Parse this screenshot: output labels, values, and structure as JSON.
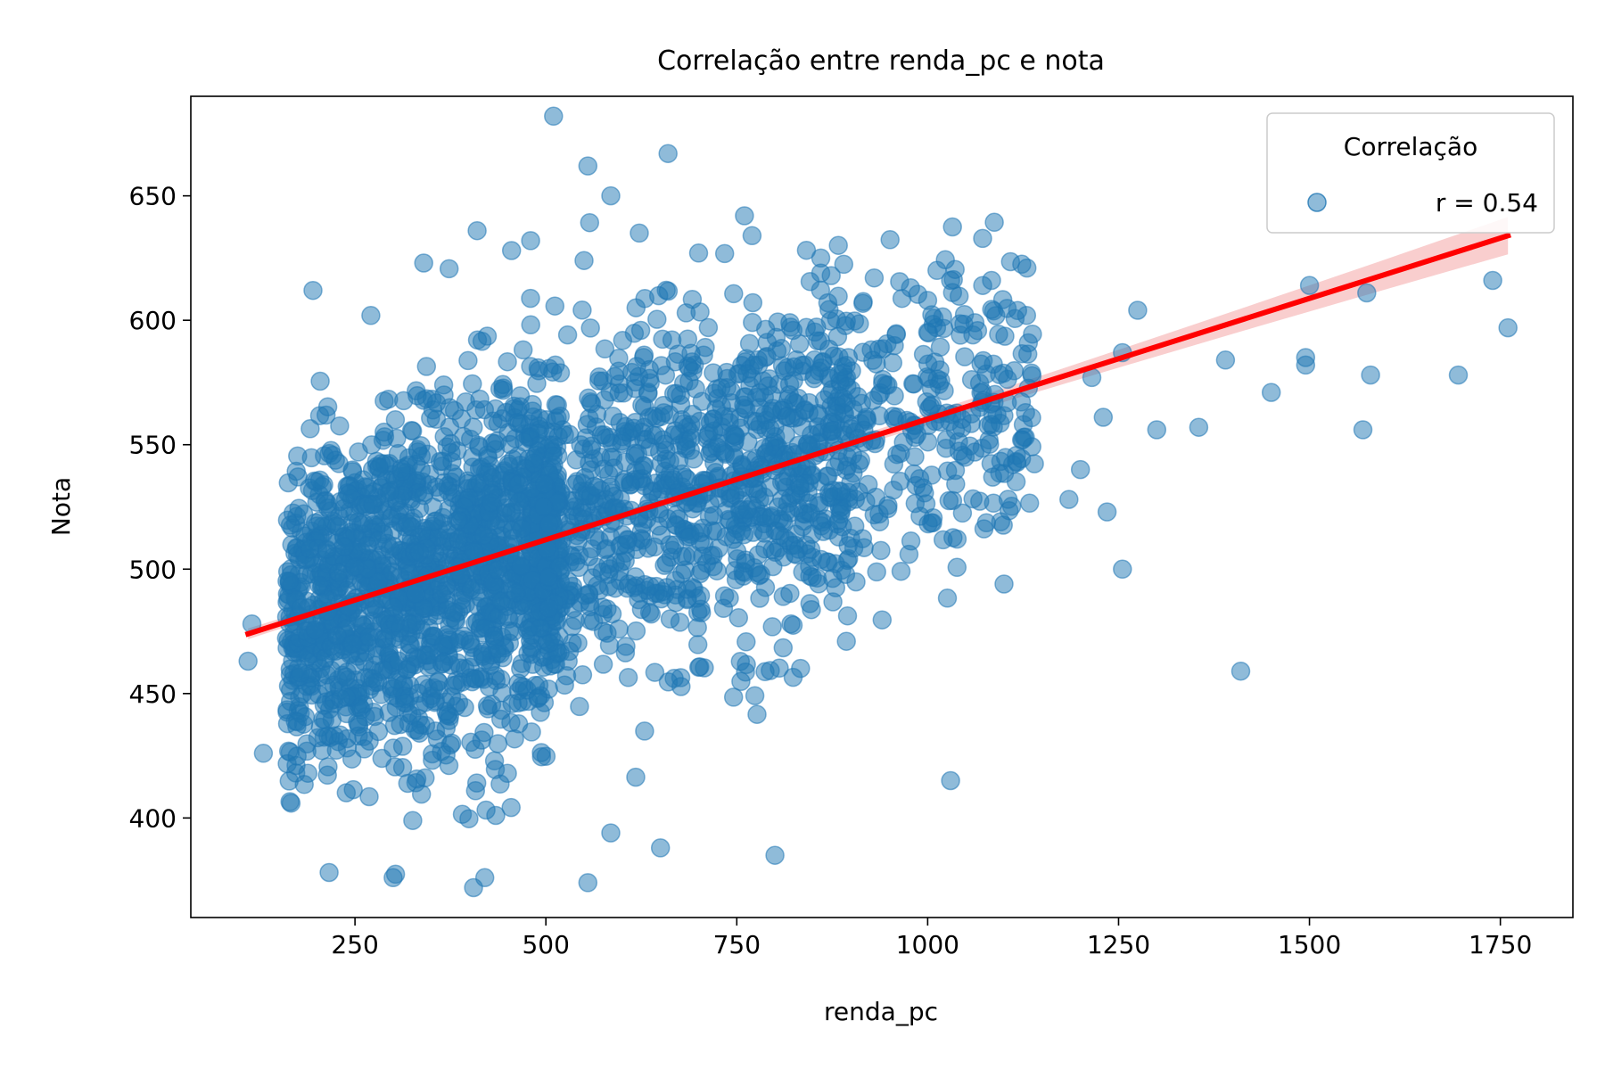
{
  "chart_data": {
    "type": "scatter",
    "title": "Correlação entre renda_pc e nota",
    "xlabel": "renda_pc",
    "ylabel": "Nota",
    "xlim": [
      35,
      1845
    ],
    "ylim": [
      360,
      690
    ],
    "xticks": [
      250,
      500,
      750,
      1000,
      1250,
      1500,
      1750
    ],
    "yticks": [
      400,
      450,
      500,
      550,
      600,
      650
    ],
    "grid": false,
    "legend": {
      "title": "Correlação",
      "entry": "r = 0.54",
      "placement": "top-right"
    },
    "series": [
      {
        "name": "r = 0.54",
        "color": "#1f77b4",
        "opacity": 0.5,
        "points_note_count_approx": 3000,
        "outliers": [
          [
            510,
            682
          ],
          [
            660,
            667
          ],
          [
            555,
            662
          ],
          [
            585,
            650
          ],
          [
            760,
            642
          ],
          [
            410,
            636
          ],
          [
            770,
            634
          ],
          [
            480,
            632
          ],
          [
            455,
            628
          ],
          [
            700,
            627
          ],
          [
            340,
            623
          ],
          [
            550,
            624
          ],
          [
            1130,
            621
          ],
          [
            860,
            625
          ],
          [
            860,
            619
          ],
          [
            195,
            612
          ],
          [
            930,
            617
          ],
          [
            1030,
            616
          ],
          [
            1740,
            616
          ],
          [
            1500,
            614
          ],
          [
            1575,
            611
          ],
          [
            1760,
            597
          ],
          [
            1275,
            604
          ],
          [
            1000,
            608
          ],
          [
            1390,
            584
          ],
          [
            1495,
            585
          ],
          [
            1495,
            582
          ],
          [
            1580,
            578
          ],
          [
            1695,
            578
          ],
          [
            1450,
            571
          ],
          [
            1215,
            577
          ],
          [
            1230,
            561
          ],
          [
            1300,
            556
          ],
          [
            1355,
            557
          ],
          [
            1570,
            556
          ],
          [
            1255,
            587
          ],
          [
            1200,
            540
          ],
          [
            1185,
            528
          ],
          [
            1235,
            523
          ],
          [
            1255,
            500
          ],
          [
            1410,
            459
          ],
          [
            1030,
            415
          ],
          [
            1100,
            494
          ],
          [
            800,
            385
          ],
          [
            555,
            374
          ],
          [
            420,
            376
          ],
          [
            300,
            376
          ],
          [
            650,
            388
          ],
          [
            585,
            394
          ],
          [
            110,
            463
          ],
          [
            130,
            426
          ],
          [
            115,
            478
          ]
        ]
      }
    ],
    "regression": {
      "color": "#ff0000",
      "x": [
        110,
        1760
      ],
      "y": [
        474,
        634
      ],
      "ci_color": "#f4a6a6"
    }
  }
}
